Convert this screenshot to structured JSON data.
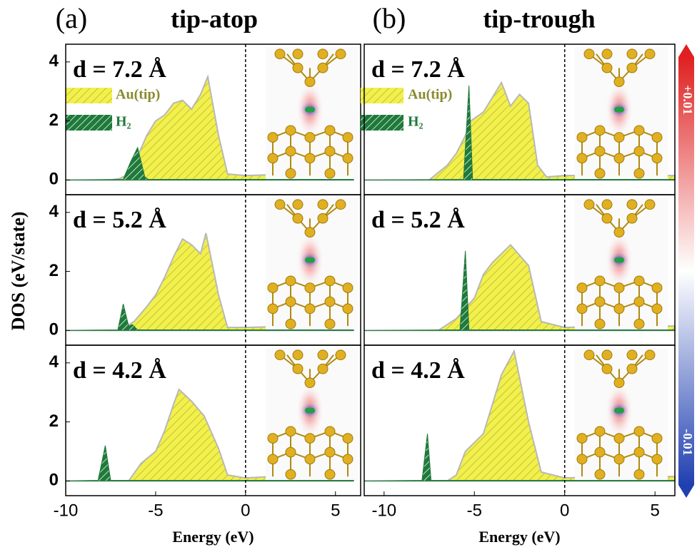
{
  "figure": {
    "y_label": "DOS (eV/state)",
    "columns": [
      {
        "label": "(a)",
        "title": "tip-atop"
      },
      {
        "label": "(b)",
        "title": "tip-trough"
      }
    ],
    "colorbar": {
      "max_label": "+0.01",
      "min_label": "-0.01"
    }
  },
  "chart_data": [
    {
      "type": "area",
      "annotation": "d = 7.2 Å",
      "xlim": [
        -10,
        6.4
      ],
      "ylim": [
        -0.5,
        4.6
      ],
      "yticks": [
        0,
        2,
        4
      ],
      "vline": 0,
      "series": [
        {
          "name": "Au(tip)",
          "color": "#f2f04a",
          "x": [
            -10,
            -7.5,
            -7,
            -6.5,
            -6,
            -5.5,
            -5,
            -4.5,
            -4,
            -3.5,
            -3,
            -2.5,
            -2.1,
            -1.5,
            -1,
            0,
            3,
            6
          ],
          "values": [
            0,
            0,
            0.05,
            0.2,
            0.8,
            1.5,
            2.0,
            2.2,
            2.6,
            2.7,
            2.4,
            2.9,
            3.5,
            1.5,
            0.2,
            0.15,
            0.2,
            0.2
          ]
        },
        {
          "name": "H₂",
          "color": "#1e7a3a",
          "x": [
            -10,
            -6.8,
            -6.4,
            -6.0,
            -5.6,
            -5.4,
            6
          ],
          "values": [
            0,
            0.02,
            0.6,
            1.1,
            0.1,
            0.02,
            0.02
          ]
        }
      ]
    },
    {
      "type": "area",
      "annotation": "d = 5.2 Å",
      "xlim": [
        -10,
        6.4
      ],
      "ylim": [
        -0.5,
        4.6
      ],
      "yticks": [
        0,
        2,
        4
      ],
      "vline": 0,
      "series": [
        {
          "color": "#f2f04a",
          "x": [
            -10,
            -7,
            -6.2,
            -5.5,
            -5,
            -4.5,
            -4,
            -3.5,
            -3,
            -2.5,
            -2.2,
            -1.5,
            -1,
            0,
            3,
            6
          ],
          "values": [
            0,
            0,
            0.3,
            0.8,
            1.2,
            1.8,
            2.5,
            3.1,
            2.9,
            2.6,
            3.3,
            1.2,
            0.1,
            0.1,
            0.15,
            0.15
          ]
        },
        {
          "color": "#1e7a3a",
          "x": [
            -10,
            -7.1,
            -6.8,
            -6.5,
            -6.3,
            -6.0,
            6
          ],
          "values": [
            0,
            0.02,
            0.9,
            0.15,
            0.2,
            0.02,
            0.02
          ]
        }
      ]
    },
    {
      "type": "area",
      "annotation": "d = 4.2 Å",
      "xlim": [
        -10,
        6.4
      ],
      "ylim": [
        -0.5,
        4.6
      ],
      "yticks": [
        0,
        2,
        4
      ],
      "xticks": [
        -10,
        -5,
        0,
        5
      ],
      "vline": 0,
      "x_label": "Energy (eV)",
      "series": [
        {
          "color": "#f2f04a",
          "x": [
            -10,
            -6.5,
            -5.8,
            -5,
            -4.5,
            -4,
            -3.7,
            -3,
            -2.3,
            -1.5,
            -1,
            0,
            3,
            6
          ],
          "values": [
            0,
            0,
            0.6,
            1.0,
            1.7,
            2.6,
            3.1,
            2.7,
            2.2,
            1.1,
            0.2,
            0.1,
            0.2,
            0.2
          ]
        },
        {
          "color": "#1e7a3a",
          "x": [
            -10,
            -8.2,
            -7.8,
            -7.5,
            6
          ],
          "values": [
            0,
            0.02,
            1.2,
            0.02,
            0.02
          ]
        }
      ]
    },
    {
      "type": "area",
      "annotation": "d = 7.2 Å",
      "xlim": [
        -11.1,
        6.1
      ],
      "ylim": [
        -0.5,
        4.6
      ],
      "vline": 0,
      "series": [
        {
          "name": "Au(tip)",
          "color": "#f2f04a",
          "x": [
            -11.1,
            -7.5,
            -6.5,
            -6,
            -5.5,
            -5.2,
            -4.5,
            -4,
            -3.5,
            -3,
            -2.5,
            -2,
            -1.5,
            -1,
            0,
            3,
            6.1
          ],
          "values": [
            0,
            0,
            0.5,
            0.9,
            1.5,
            2.0,
            2.3,
            2.8,
            3.3,
            2.5,
            2.9,
            2.6,
            0.5,
            0.1,
            0.15,
            0.15,
            0.15
          ]
        },
        {
          "name": "H₂",
          "color": "#1e7a3a",
          "x": [
            -11.1,
            -5.6,
            -5.3,
            -5.1,
            6.1
          ],
          "values": [
            0,
            0.02,
            3.2,
            0.02,
            0.02
          ]
        }
      ]
    },
    {
      "type": "area",
      "annotation": "d = 5.2 Å",
      "xlim": [
        -11.1,
        6.1
      ],
      "ylim": [
        -0.5,
        4.6
      ],
      "vline": 0,
      "series": [
        {
          "color": "#f2f04a",
          "x": [
            -11.1,
            -7,
            -6,
            -5,
            -4.5,
            -4,
            -3,
            -2,
            -1.3,
            0,
            3,
            6.1
          ],
          "values": [
            0,
            0,
            0.4,
            1.1,
            1.9,
            2.3,
            2.9,
            2.2,
            0.3,
            0.1,
            0.15,
            0.15
          ]
        },
        {
          "color": "#1e7a3a",
          "x": [
            -11.1,
            -5.8,
            -5.5,
            -5.3,
            6.1
          ],
          "values": [
            0,
            0.02,
            2.7,
            0.02,
            0.02
          ]
        }
      ]
    },
    {
      "type": "area",
      "annotation": "d = 4.2 Å",
      "xlim": [
        -11.1,
        6.1
      ],
      "ylim": [
        -0.5,
        4.6
      ],
      "xticks": [
        -10,
        -5,
        0,
        5
      ],
      "vline": 0,
      "x_label": "Energy (eV)",
      "series": [
        {
          "color": "#f2f04a",
          "x": [
            -11.1,
            -6.5,
            -6,
            -5.5,
            -4.5,
            -4,
            -3.5,
            -2.8,
            -2,
            -1.3,
            0,
            3,
            6.1
          ],
          "values": [
            0,
            0,
            0.2,
            1.0,
            1.6,
            2.6,
            3.6,
            4.4,
            2.0,
            0.3,
            0.1,
            0.15,
            0.15
          ]
        },
        {
          "color": "#1e7a3a",
          "x": [
            -11.1,
            -7.9,
            -7.6,
            -7.4,
            6.1
          ],
          "values": [
            0,
            0.02,
            1.6,
            0.02,
            0.02
          ]
        }
      ]
    }
  ]
}
